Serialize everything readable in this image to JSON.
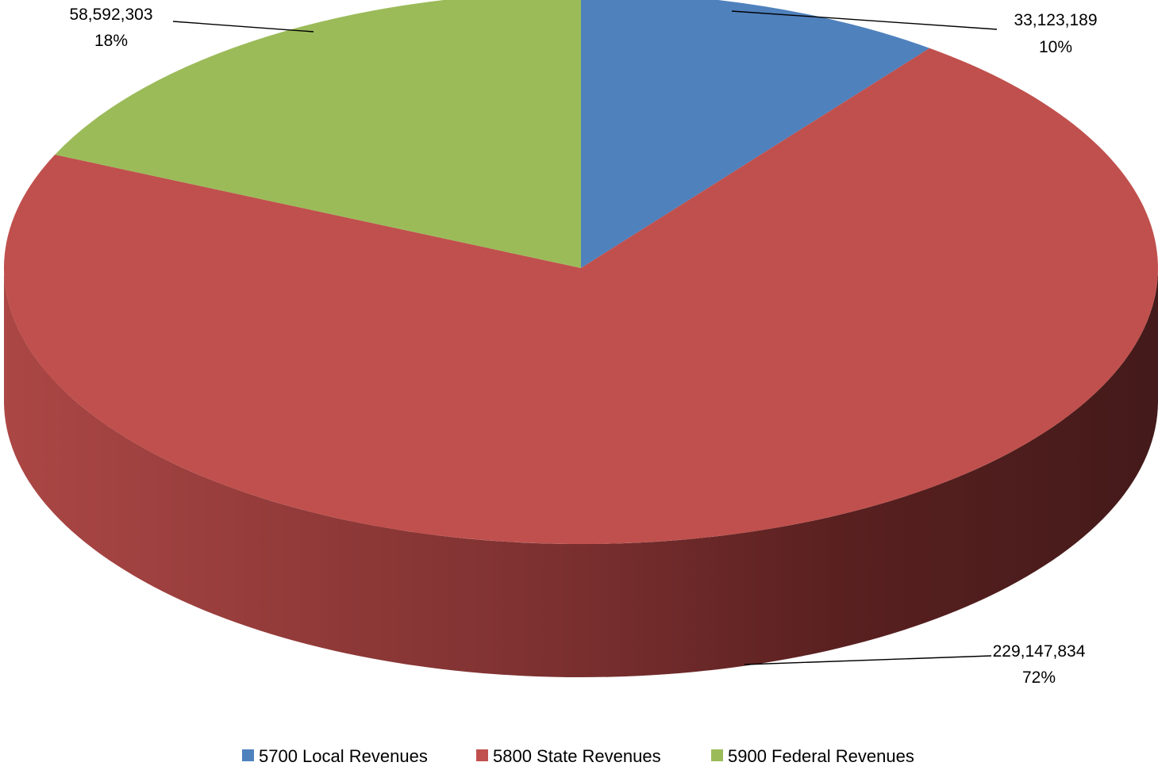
{
  "chart_data": {
    "type": "pie",
    "style": "3d",
    "title": "",
    "categories": [
      "5700 Local Revenues",
      "5800 State Revenues",
      "5900 Federal Revenues"
    ],
    "values": [
      33123189,
      229147834,
      58592303
    ],
    "value_labels": [
      "33,123,189",
      "229,147,834",
      "58,592,303"
    ],
    "percent_labels": [
      "10%",
      "72%",
      "18%"
    ],
    "colors": [
      "#4f81bd",
      "#c0504d",
      "#9bbb59"
    ],
    "legend": {
      "position": "bottom",
      "entries": [
        "5700 Local Revenues",
        "5800 State Revenues",
        "5900 Federal Revenues"
      ]
    }
  }
}
